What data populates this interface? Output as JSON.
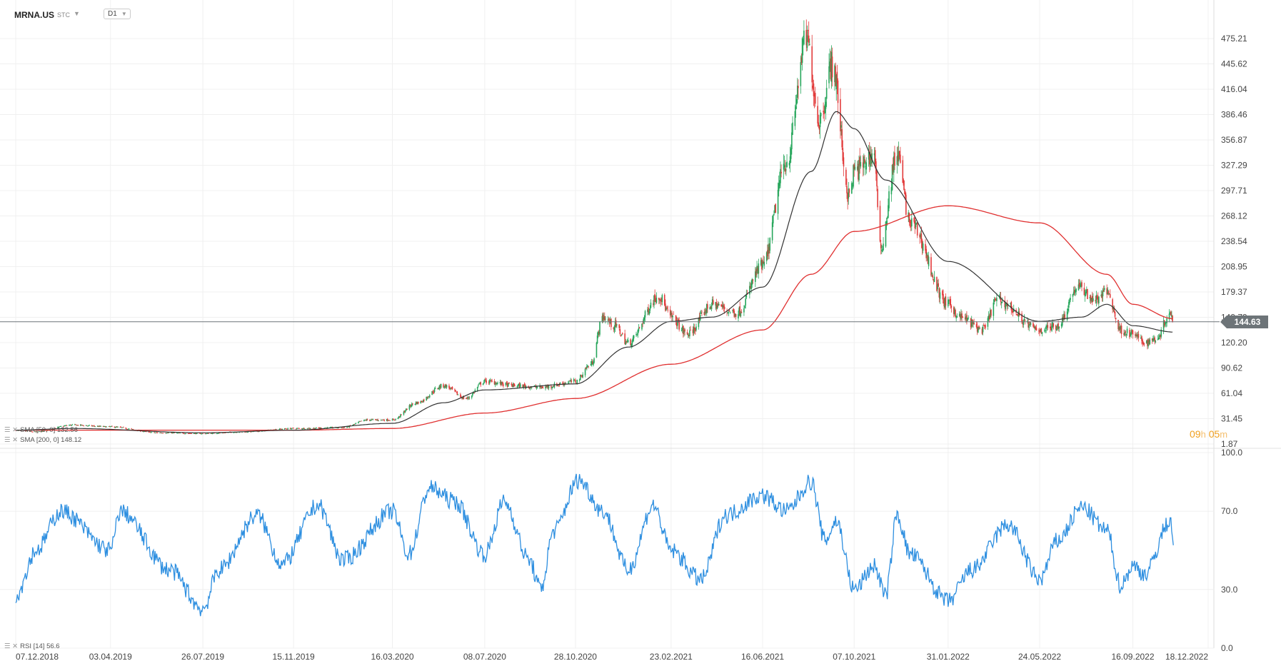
{
  "header": {
    "symbol": "MRNA.US",
    "market": "STC",
    "timeframe": "D1"
  },
  "indicators": {
    "sma50_label": "SMA [50, 0] 132.56",
    "sma200_label": "SMA [200, 0] 148.12",
    "rsi_label": "RSI [14] 56.6"
  },
  "countdown": {
    "hours": "09",
    "h_unit": "h",
    "minutes": "05",
    "m_unit": "m"
  },
  "last_price": "144.63",
  "colors": {
    "up": "#26a65b",
    "down": "#e23b3b",
    "sma50": "#333333",
    "sma200": "#e03030",
    "rsi": "#2e8fe0",
    "last_line": "#6d7478"
  },
  "chart_data": {
    "type": "line",
    "subtype": "candlestick",
    "price_axis_ticks": [
      "475.21",
      "445.62",
      "416.04",
      "386.46",
      "356.87",
      "327.29",
      "297.71",
      "268.12",
      "238.54",
      "208.95",
      "179.37",
      "149.79",
      "120.20",
      "90.62",
      "61.04",
      "31.45",
      "1.87"
    ],
    "price_axis_range": [
      1.87,
      475.21
    ],
    "rsi_axis_ticks": [
      "100.0",
      "70.0",
      "30.0",
      "0.0"
    ],
    "rsi_axis_range": [
      0,
      100
    ],
    "date_ticks": [
      "07.12.2018",
      "03.04.2019",
      "26.07.2019",
      "15.11.2019",
      "16.03.2020",
      "08.07.2020",
      "28.10.2020",
      "23.02.2021",
      "16.06.2021",
      "07.10.2021",
      "31.01.2022",
      "24.05.2022",
      "16.09.2022",
      "18.12.2022"
    ],
    "close_anchors": [
      {
        "date": "07.12.2018",
        "value": 18
      },
      {
        "date": "01.01.2019",
        "value": 16
      },
      {
        "date": "15.02.2019",
        "value": 24
      },
      {
        "date": "01.04.2019",
        "value": 22
      },
      {
        "date": "01.06.2019",
        "value": 15
      },
      {
        "date": "26.07.2019",
        "value": 14
      },
      {
        "date": "15.09.2019",
        "value": 16
      },
      {
        "date": "15.11.2019",
        "value": 20
      },
      {
        "date": "15.01.2020",
        "value": 21
      },
      {
        "date": "15.02.2020",
        "value": 30
      },
      {
        "date": "16.03.2020",
        "value": 30
      },
      {
        "date": "15.04.2020",
        "value": 50
      },
      {
        "date": "18.05.2020",
        "value": 70
      },
      {
        "date": "15.06.2020",
        "value": 55
      },
      {
        "date": "08.07.2020",
        "value": 75
      },
      {
        "date": "15.08.2020",
        "value": 70
      },
      {
        "date": "15.09.2020",
        "value": 68
      },
      {
        "date": "28.10.2020",
        "value": 75
      },
      {
        "date": "16.11.2020",
        "value": 95
      },
      {
        "date": "01.12.2020",
        "value": 150
      },
      {
        "date": "15.12.2020",
        "value": 140
      },
      {
        "date": "01.01.2021",
        "value": 120
      },
      {
        "date": "08.02.2021",
        "value": 175
      },
      {
        "date": "23.02.2021",
        "value": 150
      },
      {
        "date": "15.03.2021",
        "value": 130
      },
      {
        "date": "15.04.2021",
        "value": 165
      },
      {
        "date": "15.05.2021",
        "value": 155
      },
      {
        "date": "16.06.2021",
        "value": 210
      },
      {
        "date": "15.07.2021",
        "value": 330
      },
      {
        "date": "09.08.2021",
        "value": 475
      },
      {
        "date": "25.08.2021",
        "value": 380
      },
      {
        "date": "10.09.2021",
        "value": 445
      },
      {
        "date": "01.10.2021",
        "value": 290
      },
      {
        "date": "07.10.2021",
        "value": 320
      },
      {
        "date": "01.11.2021",
        "value": 340
      },
      {
        "date": "08.11.2021",
        "value": 230
      },
      {
        "date": "29.11.2021",
        "value": 340
      },
      {
        "date": "15.12.2021",
        "value": 260
      },
      {
        "date": "31.01.2022",
        "value": 165
      },
      {
        "date": "15.02.2022",
        "value": 150
      },
      {
        "date": "15.03.2022",
        "value": 135
      },
      {
        "date": "01.04.2022",
        "value": 170
      },
      {
        "date": "24.05.2022",
        "value": 135
      },
      {
        "date": "15.06.2022",
        "value": 140
      },
      {
        "date": "10.07.2022",
        "value": 185
      },
      {
        "date": "01.08.2022",
        "value": 170
      },
      {
        "date": "15.08.2022",
        "value": 180
      },
      {
        "date": "01.09.2022",
        "value": 135
      },
      {
        "date": "16.09.2022",
        "value": 130
      },
      {
        "date": "01.10.2022",
        "value": 120
      },
      {
        "date": "15.10.2022",
        "value": 125
      },
      {
        "date": "01.11.2022",
        "value": 155
      },
      {
        "date": "05.11.2022",
        "value": 144.63
      }
    ],
    "sma50_anchors": [
      {
        "date": "07.12.2018",
        "value": 18
      },
      {
        "date": "15.02.2019",
        "value": 20
      },
      {
        "date": "26.07.2019",
        "value": 15
      },
      {
        "date": "15.11.2019",
        "value": 18
      },
      {
        "date": "16.03.2020",
        "value": 26
      },
      {
        "date": "18.05.2020",
        "value": 50
      },
      {
        "date": "08.07.2020",
        "value": 65
      },
      {
        "date": "28.10.2020",
        "value": 72
      },
      {
        "date": "01.01.2021",
        "value": 115
      },
      {
        "date": "23.02.2021",
        "value": 145
      },
      {
        "date": "15.04.2021",
        "value": 150
      },
      {
        "date": "16.06.2021",
        "value": 185
      },
      {
        "date": "15.08.2021",
        "value": 320
      },
      {
        "date": "15.09.2021",
        "value": 390
      },
      {
        "date": "07.10.2021",
        "value": 370
      },
      {
        "date": "15.11.2021",
        "value": 310
      },
      {
        "date": "31.01.2022",
        "value": 215
      },
      {
        "date": "24.05.2022",
        "value": 145
      },
      {
        "date": "15.07.2022",
        "value": 150
      },
      {
        "date": "15.08.2022",
        "value": 165
      },
      {
        "date": "16.09.2022",
        "value": 140
      },
      {
        "date": "05.11.2022",
        "value": 132.56
      }
    ],
    "sma200_anchors": [
      {
        "date": "07.12.2018",
        "value": 18
      },
      {
        "date": "15.11.2019",
        "value": 18
      },
      {
        "date": "16.03.2020",
        "value": 20
      },
      {
        "date": "08.07.2020",
        "value": 38
      },
      {
        "date": "28.10.2020",
        "value": 55
      },
      {
        "date": "23.02.2021",
        "value": 95
      },
      {
        "date": "16.06.2021",
        "value": 135
      },
      {
        "date": "15.08.2021",
        "value": 200
      },
      {
        "date": "07.10.2021",
        "value": 250
      },
      {
        "date": "31.01.2022",
        "value": 280
      },
      {
        "date": "24.05.2022",
        "value": 260
      },
      {
        "date": "15.08.2022",
        "value": 200
      },
      {
        "date": "16.09.2022",
        "value": 165
      },
      {
        "date": "05.11.2022",
        "value": 148.12
      }
    ],
    "rsi_anchors": [
      {
        "date": "07.12.2018",
        "value": 27
      },
      {
        "date": "01.01.2019",
        "value": 50
      },
      {
        "date": "01.02.2019",
        "value": 70
      },
      {
        "date": "03.04.2019",
        "value": 50
      },
      {
        "date": "15.04.2019",
        "value": 70
      },
      {
        "date": "15.06.2019",
        "value": 40
      },
      {
        "date": "26.07.2019",
        "value": 20
      },
      {
        "date": "15.08.2019",
        "value": 40
      },
      {
        "date": "01.10.2019",
        "value": 68
      },
      {
        "date": "01.11.2019",
        "value": 43
      },
      {
        "date": "15.12.2019",
        "value": 73
      },
      {
        "date": "15.01.2020",
        "value": 45
      },
      {
        "date": "16.03.2020",
        "value": 70
      },
      {
        "date": "05.04.2020",
        "value": 48
      },
      {
        "date": "01.05.2020",
        "value": 82
      },
      {
        "date": "01.06.2020",
        "value": 75
      },
      {
        "date": "08.07.2020",
        "value": 48
      },
      {
        "date": "01.08.2020",
        "value": 75
      },
      {
        "date": "01.09.2020",
        "value": 45
      },
      {
        "date": "15.09.2020",
        "value": 30
      },
      {
        "date": "01.10.2020",
        "value": 60
      },
      {
        "date": "01.11.2020",
        "value": 86
      },
      {
        "date": "01.12.2020",
        "value": 70
      },
      {
        "date": "01.01.2021",
        "value": 40
      },
      {
        "date": "01.02.2021",
        "value": 73
      },
      {
        "date": "23.02.2021",
        "value": 50
      },
      {
        "date": "01.04.2021",
        "value": 35
      },
      {
        "date": "01.05.2021",
        "value": 68
      },
      {
        "date": "16.06.2021",
        "value": 78
      },
      {
        "date": "15.07.2021",
        "value": 70
      },
      {
        "date": "15.08.2021",
        "value": 85
      },
      {
        "date": "01.09.2021",
        "value": 55
      },
      {
        "date": "15.09.2021",
        "value": 65
      },
      {
        "date": "07.10.2021",
        "value": 30
      },
      {
        "date": "01.11.2021",
        "value": 42
      },
      {
        "date": "15.11.2021",
        "value": 27
      },
      {
        "date": "29.11.2021",
        "value": 68
      },
      {
        "date": "15.12.2021",
        "value": 48
      },
      {
        "date": "31.01.2022",
        "value": 24
      },
      {
        "date": "01.03.2022",
        "value": 40
      },
      {
        "date": "15.04.2022",
        "value": 63
      },
      {
        "date": "24.05.2022",
        "value": 35
      },
      {
        "date": "15.06.2022",
        "value": 55
      },
      {
        "date": "15.07.2022",
        "value": 72
      },
      {
        "date": "15.08.2022",
        "value": 60
      },
      {
        "date": "01.09.2022",
        "value": 32
      },
      {
        "date": "16.09.2022",
        "value": 42
      },
      {
        "date": "01.10.2022",
        "value": 38
      },
      {
        "date": "01.11.2022",
        "value": 65
      },
      {
        "date": "05.11.2022",
        "value": 56.6
      }
    ]
  }
}
